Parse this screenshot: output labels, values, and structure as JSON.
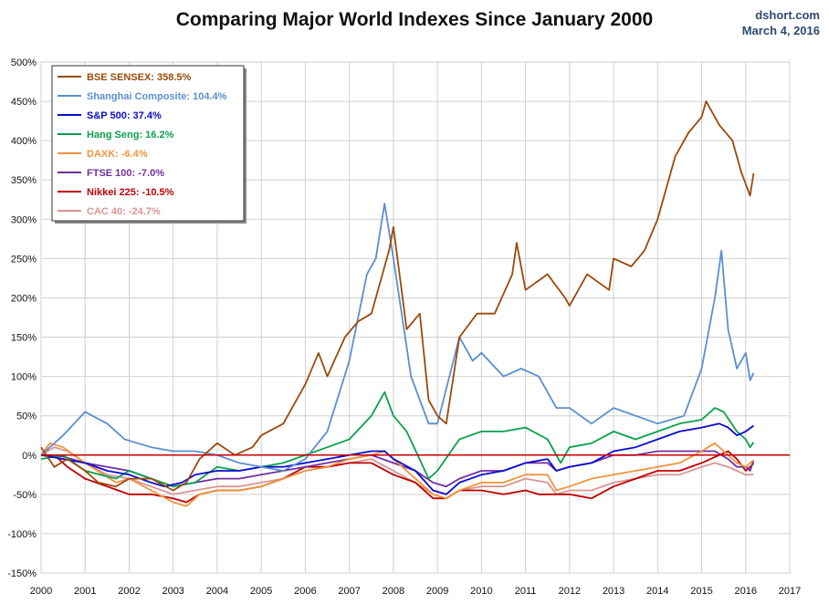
{
  "chart_data": {
    "type": "line",
    "title": "Comparing Major World Indexes Since January 2000",
    "source": "dshort.com",
    "date": "March 4, 2016",
    "xlabel": "",
    "ylabel": "",
    "xlim": [
      2000,
      2017
    ],
    "ylim": [
      -150,
      500
    ],
    "x_ticks": [
      "2000",
      "2001",
      "2002",
      "2003",
      "2004",
      "2005",
      "2006",
      "2007",
      "2008",
      "2009",
      "2010",
      "2011",
      "2012",
      "2013",
      "2014",
      "2015",
      "2016",
      "2017"
    ],
    "y_ticks": [
      "-150%",
      "-100%",
      "-50%",
      "0%",
      "50%",
      "100%",
      "150%",
      "200%",
      "250%",
      "300%",
      "350%",
      "400%",
      "450%",
      "500%"
    ],
    "grid": true,
    "baseline": 0,
    "baseline_color": "#cc0000",
    "legend_position": "top-left",
    "series": [
      {
        "name": "BSE SENSEX: 358.5%",
        "color": "#9a4a0c",
        "x": [
          2000.0,
          2000.3,
          2000.6,
          2001.0,
          2001.3,
          2001.7,
          2002.0,
          2002.5,
          2003.0,
          2003.3,
          2003.6,
          2004.0,
          2004.4,
          2004.8,
          2005.0,
          2005.5,
          2006.0,
          2006.3,
          2006.5,
          2006.9,
          2007.2,
          2007.5,
          2007.9,
          2008.0,
          2008.3,
          2008.6,
          2008.8,
          2009.0,
          2009.2,
          2009.5,
          2009.9,
          2010.3,
          2010.7,
          2010.8,
          2011.0,
          2011.5,
          2011.9,
          2012.0,
          2012.4,
          2012.9,
          2013.0,
          2013.4,
          2013.7,
          2014.0,
          2014.4,
          2014.7,
          2015.0,
          2015.1,
          2015.4,
          2015.7,
          2015.9,
          2016.1,
          2016.18
        ],
        "values": [
          10,
          -15,
          -5,
          -20,
          -35,
          -40,
          -30,
          -30,
          -45,
          -35,
          -5,
          15,
          0,
          10,
          25,
          40,
          90,
          130,
          100,
          150,
          170,
          180,
          260,
          290,
          160,
          180,
          70,
          50,
          40,
          150,
          180,
          180,
          230,
          270,
          210,
          230,
          200,
          190,
          230,
          210,
          250,
          240,
          260,
          300,
          380,
          410,
          430,
          450,
          420,
          400,
          360,
          330,
          358.5
        ]
      },
      {
        "name": "Shanghai Composite: 104.4%",
        "color": "#5b8fd0",
        "x": [
          2000.0,
          2000.5,
          2001.0,
          2001.5,
          2001.9,
          2002.5,
          2003.0,
          2003.5,
          2004.0,
          2004.5,
          2005.0,
          2005.5,
          2006.0,
          2006.5,
          2007.0,
          2007.4,
          2007.6,
          2007.8,
          2008.0,
          2008.4,
          2008.8,
          2009.0,
          2009.5,
          2009.8,
          2010.0,
          2010.5,
          2010.9,
          2011.3,
          2011.7,
          2012.0,
          2012.5,
          2013.0,
          2013.5,
          2014.0,
          2014.6,
          2015.0,
          2015.3,
          2015.45,
          2015.6,
          2015.8,
          2016.0,
          2016.1,
          2016.18
        ],
        "values": [
          0,
          25,
          55,
          40,
          20,
          10,
          5,
          5,
          0,
          -10,
          -15,
          -20,
          -5,
          30,
          120,
          230,
          250,
          320,
          250,
          100,
          40,
          40,
          150,
          120,
          130,
          100,
          110,
          100,
          60,
          60,
          40,
          60,
          50,
          40,
          50,
          110,
          200,
          260,
          160,
          110,
          130,
          95,
          104.4
        ]
      },
      {
        "name": "S&P 500: 37.4%",
        "color": "#0b0bd0",
        "x": [
          2000.0,
          2000.5,
          2001.0,
          2001.5,
          2002.0,
          2002.5,
          2002.8,
          2003.2,
          2003.5,
          2004.0,
          2004.5,
          2005.0,
          2005.5,
          2006.0,
          2006.5,
          2007.0,
          2007.5,
          2007.8,
          2008.0,
          2008.5,
          2008.9,
          2009.2,
          2009.5,
          2010.0,
          2010.5,
          2011.0,
          2011.5,
          2011.7,
          2012.0,
          2012.5,
          2013.0,
          2013.5,
          2014.0,
          2014.5,
          2015.0,
          2015.4,
          2015.6,
          2015.8,
          2016.0,
          2016.18
        ],
        "values": [
          0,
          -5,
          -10,
          -20,
          -25,
          -35,
          -40,
          -35,
          -25,
          -20,
          -20,
          -15,
          -15,
          -10,
          -5,
          0,
          5,
          5,
          -5,
          -20,
          -45,
          -50,
          -35,
          -25,
          -20,
          -10,
          -5,
          -20,
          -15,
          -10,
          5,
          10,
          20,
          30,
          35,
          40,
          35,
          25,
          30,
          37.4
        ]
      },
      {
        "name": "Hang Seng: 16.2%",
        "color": "#0aa04c",
        "x": [
          2000.0,
          2000.5,
          2001.0,
          2001.7,
          2002.0,
          2002.5,
          2003.0,
          2003.5,
          2004.0,
          2004.5,
          2005.0,
          2005.5,
          2006.0,
          2006.5,
          2007.0,
          2007.5,
          2007.8,
          2008.0,
          2008.3,
          2008.8,
          2009.0,
          2009.5,
          2010.0,
          2010.5,
          2011.0,
          2011.5,
          2011.8,
          2012.0,
          2012.5,
          2013.0,
          2013.5,
          2014.0,
          2014.5,
          2015.0,
          2015.3,
          2015.5,
          2015.8,
          2016.0,
          2016.1,
          2016.18
        ],
        "values": [
          -5,
          0,
          -20,
          -30,
          -20,
          -30,
          -40,
          -35,
          -15,
          -20,
          -15,
          -10,
          0,
          10,
          20,
          50,
          80,
          50,
          30,
          -30,
          -20,
          20,
          30,
          30,
          35,
          20,
          -10,
          10,
          15,
          30,
          20,
          30,
          40,
          45,
          60,
          55,
          30,
          20,
          10,
          16.2
        ]
      },
      {
        "name": "DAXK: -6.4%",
        "color": "#f0943c",
        "x": [
          2000.0,
          2000.2,
          2000.5,
          2001.0,
          2001.7,
          2002.0,
          2002.5,
          2003.0,
          2003.3,
          2003.6,
          2004.0,
          2004.5,
          2005.0,
          2005.5,
          2006.0,
          2006.5,
          2007.0,
          2007.5,
          2007.8,
          2008.0,
          2008.5,
          2008.9,
          2009.2,
          2009.5,
          2010.0,
          2010.5,
          2011.0,
          2011.5,
          2011.7,
          2012.0,
          2012.5,
          2013.0,
          2013.5,
          2014.0,
          2014.5,
          2015.0,
          2015.3,
          2015.6,
          2015.8,
          2016.0,
          2016.18
        ],
        "values": [
          0,
          15,
          10,
          -10,
          -35,
          -30,
          -45,
          -60,
          -65,
          -50,
          -45,
          -45,
          -40,
          -30,
          -20,
          -15,
          -5,
          0,
          5,
          -5,
          -30,
          -50,
          -55,
          -45,
          -35,
          -35,
          -25,
          -25,
          -45,
          -40,
          -30,
          -25,
          -20,
          -15,
          -10,
          5,
          15,
          0,
          -10,
          -15,
          -6.4
        ]
      },
      {
        "name": "FTSE 100: -7.0%",
        "color": "#7030a0",
        "x": [
          2000.0,
          2000.5,
          2001.0,
          2001.5,
          2002.0,
          2002.5,
          2003.0,
          2003.5,
          2004.0,
          2004.5,
          2005.0,
          2005.5,
          2006.0,
          2006.5,
          2007.0,
          2007.5,
          2008.0,
          2008.5,
          2008.9,
          2009.2,
          2009.5,
          2010.0,
          2010.5,
          2011.0,
          2011.5,
          2011.7,
          2012.0,
          2012.5,
          2013.0,
          2013.5,
          2014.0,
          2014.5,
          2015.0,
          2015.3,
          2015.6,
          2015.8,
          2016.0,
          2016.1,
          2016.18
        ],
        "values": [
          0,
          -2,
          -10,
          -15,
          -20,
          -30,
          -40,
          -35,
          -30,
          -30,
          -25,
          -20,
          -15,
          -10,
          -5,
          0,
          -10,
          -20,
          -35,
          -40,
          -30,
          -20,
          -20,
          -10,
          -10,
          -20,
          -15,
          -10,
          0,
          0,
          5,
          5,
          5,
          5,
          -5,
          -15,
          -15,
          -20,
          -7.0
        ]
      },
      {
        "name": "Nikkei 225: -10.5%",
        "color": "#c00000",
        "x": [
          2000.0,
          2000.3,
          2000.6,
          2001.0,
          2001.5,
          2002.0,
          2002.5,
          2003.0,
          2003.3,
          2003.6,
          2004.0,
          2004.5,
          2005.0,
          2005.5,
          2006.0,
          2006.5,
          2007.0,
          2007.5,
          2008.0,
          2008.5,
          2008.9,
          2009.2,
          2009.5,
          2010.0,
          2010.5,
          2011.0,
          2011.3,
          2011.7,
          2012.0,
          2012.5,
          2013.0,
          2013.5,
          2014.0,
          2014.5,
          2015.0,
          2015.4,
          2015.6,
          2015.8,
          2016.0,
          2016.1,
          2016.18
        ],
        "values": [
          0,
          0,
          -15,
          -30,
          -40,
          -50,
          -50,
          -55,
          -60,
          -50,
          -45,
          -45,
          -40,
          -30,
          -15,
          -15,
          -10,
          -10,
          -25,
          -35,
          -55,
          -55,
          -45,
          -45,
          -50,
          -45,
          -50,
          -50,
          -50,
          -55,
          -40,
          -30,
          -20,
          -20,
          -10,
          0,
          5,
          -5,
          -20,
          -15,
          -10.5
        ]
      },
      {
        "name": "CAC 40: -24.7%",
        "color": "#d99593",
        "x": [
          2000.0,
          2000.3,
          2000.6,
          2001.0,
          2001.5,
          2002.0,
          2002.5,
          2003.0,
          2003.5,
          2004.0,
          2004.5,
          2005.0,
          2005.5,
          2006.0,
          2006.5,
          2007.0,
          2007.5,
          2008.0,
          2008.5,
          2008.9,
          2009.2,
          2009.5,
          2010.0,
          2010.5,
          2011.0,
          2011.5,
          2011.7,
          2012.0,
          2012.5,
          2013.0,
          2013.5,
          2014.0,
          2014.5,
          2015.0,
          2015.3,
          2015.6,
          2015.8,
          2016.0,
          2016.18
        ],
        "values": [
          0,
          10,
          5,
          -10,
          -25,
          -30,
          -40,
          -50,
          -45,
          -40,
          -40,
          -35,
          -30,
          -20,
          -15,
          -10,
          -5,
          -20,
          -35,
          -50,
          -55,
          -45,
          -40,
          -40,
          -30,
          -35,
          -50,
          -45,
          -45,
          -35,
          -30,
          -25,
          -25,
          -15,
          -10,
          -15,
          -20,
          -25,
          -24.7
        ]
      }
    ]
  }
}
